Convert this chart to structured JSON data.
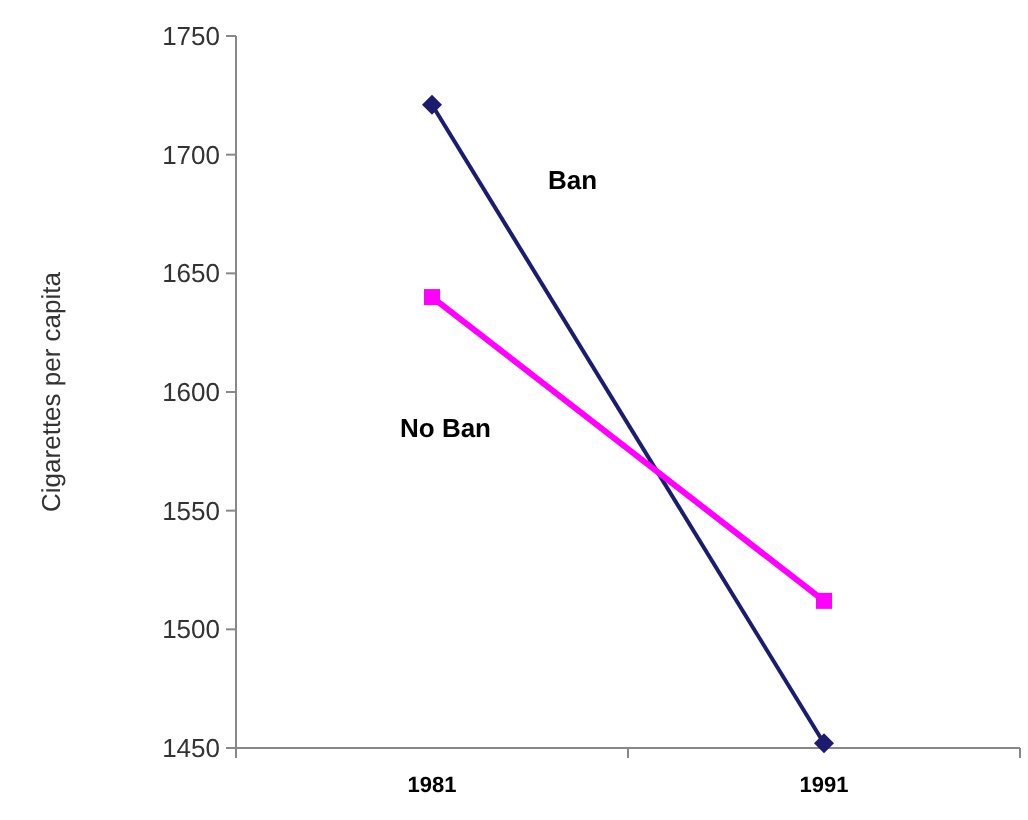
{
  "chart_data": {
    "type": "line",
    "ylabel": "Cigarettes per capita",
    "categories": [
      "1981",
      "1991"
    ],
    "series": [
      {
        "name": "Ban",
        "color": "#1c1c6e",
        "marker": "diamond",
        "values": [
          1721,
          1452
        ]
      },
      {
        "name": "No Ban",
        "color": "#ff00ff",
        "marker": "square",
        "values": [
          1640,
          1512
        ]
      }
    ],
    "ylim": [
      1450,
      1750
    ],
    "yticks": [
      1450,
      1500,
      1550,
      1600,
      1650,
      1700,
      1750
    ],
    "grid": false
  }
}
